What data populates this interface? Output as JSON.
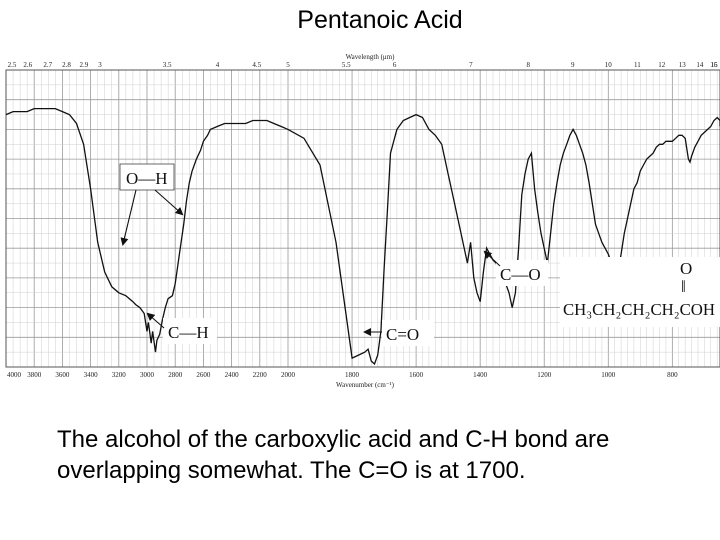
{
  "slide": {
    "title": "Pentanoic Acid",
    "caption": "The alcohol of the carboxylic acid and C-H bond are overlapping somewhat. The C=O is at 1700."
  },
  "chart_data": {
    "type": "line",
    "title": "Pentanoic Acid",
    "x_top_label": "Wavelength (μm)",
    "x_bottom_label": "Wavenumber (cm⁻¹)",
    "top_ticks": [
      "2.5",
      "2.6",
      "2.7",
      "2.8",
      "2.9",
      "3",
      "3.5",
      "4",
      "4.5",
      "5",
      "5.5",
      "6",
      "7",
      "8",
      "9",
      "10",
      "11",
      "12",
      "13",
      "14",
      "15",
      "16"
    ],
    "top_tick_values": [
      4000,
      3846,
      3704,
      3571,
      3448,
      3333,
      2857,
      2500,
      2222,
      2000,
      1818,
      1667,
      1429,
      1250,
      1111,
      1000,
      909,
      833,
      769,
      714,
      667,
      625
    ],
    "bottom_ticks": [
      "4000",
      "3800",
      "3600",
      "3400",
      "3200",
      "3000",
      "2800",
      "2600",
      "2400",
      "2200",
      "2000",
      "1800",
      "1600",
      "1400",
      "1200",
      "1000",
      "800"
    ],
    "bottom_tick_values": [
      4000,
      3800,
      3600,
      3400,
      3200,
      3000,
      2800,
      2600,
      2400,
      2200,
      2000,
      1800,
      1600,
      1400,
      1200,
      1000,
      800
    ],
    "xlim": [
      4000,
      620
    ],
    "ylim": [
      0,
      100
    ],
    "grid": true,
    "series": [
      {
        "x": [
          4000,
          3950,
          3900,
          3850,
          3800,
          3750,
          3700,
          3650,
          3600,
          3550,
          3500,
          3450,
          3400,
          3350,
          3300,
          3250,
          3200,
          3150,
          3100,
          3080,
          3050,
          3020,
          3000,
          2990,
          2970,
          2960,
          2940,
          2930,
          2910,
          2890,
          2870,
          2850,
          2820,
          2800,
          2770,
          2740,
          2720,
          2700,
          2680,
          2650,
          2620,
          2600,
          2570,
          2550,
          2500,
          2450,
          2400,
          2350,
          2300,
          2250,
          2200,
          2150,
          2100,
          2050,
          2000,
          1950,
          1900,
          1850,
          1800,
          1780,
          1760,
          1750,
          1740,
          1730,
          1720,
          1710,
          1700,
          1690,
          1680,
          1670,
          1660,
          1640,
          1620,
          1600,
          1580,
          1560,
          1540,
          1520,
          1500,
          1480,
          1470,
          1460,
          1450,
          1440,
          1430,
          1420,
          1410,
          1400,
          1390,
          1380,
          1370,
          1360,
          1350,
          1340,
          1330,
          1320,
          1310,
          1300,
          1290,
          1280,
          1270,
          1260,
          1250,
          1240,
          1230,
          1220,
          1210,
          1200,
          1190,
          1180,
          1170,
          1160,
          1150,
          1140,
          1130,
          1120,
          1110,
          1100,
          1090,
          1080,
          1070,
          1060,
          1050,
          1040,
          1030,
          1020,
          1010,
          1000,
          990,
          980,
          970,
          960,
          950,
          940,
          930,
          920,
          910,
          900,
          890,
          880,
          870,
          860,
          850,
          840,
          830,
          820,
          810,
          800,
          790,
          780,
          770,
          760,
          750,
          745,
          740,
          730,
          720,
          710,
          700,
          690,
          680,
          670,
          660,
          650,
          640,
          630,
          620
        ],
        "y": [
          85,
          86,
          86,
          86,
          87,
          87,
          87,
          87,
          86,
          85,
          82,
          75,
          60,
          42,
          32,
          27,
          25,
          24,
          22,
          21,
          20,
          18,
          12,
          15,
          8,
          12,
          5,
          9,
          11,
          16,
          20,
          23,
          24,
          28,
          38,
          48,
          56,
          62,
          66,
          70,
          73,
          76,
          78,
          80,
          81,
          82,
          82,
          82,
          82,
          83,
          83,
          83,
          82,
          81,
          80,
          77,
          68,
          42,
          3,
          4,
          5,
          6,
          2,
          1,
          4,
          12,
          33,
          52,
          72,
          76,
          80,
          83,
          84,
          85,
          84,
          80,
          78,
          75,
          65,
          55,
          50,
          45,
          40,
          35,
          42,
          30,
          25,
          22,
          32,
          40,
          38,
          36,
          35,
          30,
          32,
          28,
          25,
          20,
          25,
          40,
          58,
          65,
          70,
          72,
          60,
          52,
          45,
          40,
          35,
          45,
          55,
          62,
          68,
          72,
          75,
          78,
          80,
          78,
          75,
          72,
          68,
          62,
          55,
          48,
          45,
          42,
          40,
          38,
          35,
          33,
          32,
          38,
          45,
          50,
          55,
          60,
          62,
          66,
          68,
          70,
          71,
          72,
          74,
          75,
          75,
          76,
          76,
          76,
          77,
          78,
          78,
          77,
          70,
          69,
          71,
          74,
          76,
          78,
          79,
          80,
          81,
          83,
          84,
          83,
          82,
          82,
          81
        ]
      }
    ],
    "annotations": [
      {
        "text": "O—H"
      },
      {
        "text": "C—H"
      },
      {
        "text": "C=O"
      },
      {
        "text": "C—O"
      }
    ],
    "structure": {
      "carbonyl_o": "O",
      "double_bond": "‖",
      "formula": "CH₃CH₂CH₂CH₂COH"
    },
    "colors": {
      "line": "#111111",
      "grid": "#9a9a9a",
      "grid_minor": "#cfcfcf",
      "background": "#ffffff"
    }
  }
}
